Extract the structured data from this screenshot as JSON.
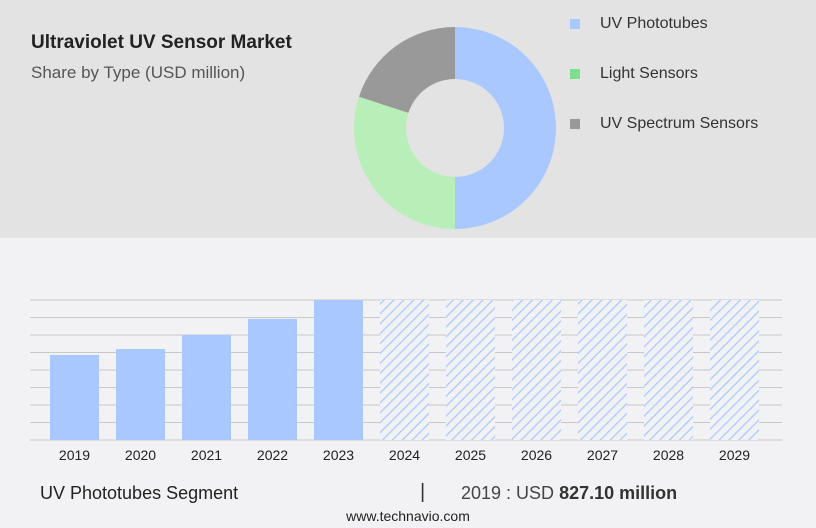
{
  "chart_data": [
    {
      "type": "pie",
      "title": "Ultraviolet UV Sensor Market",
      "subtitle": "Share by Type (USD million)",
      "legend_placement": "right",
      "donut": true,
      "slices": [
        {
          "name": "UV Phototubes",
          "share": 50,
          "color": "#a8c8ff"
        },
        {
          "name": "Light Sensors",
          "share": 30,
          "color": "#b8efb8"
        },
        {
          "name": "UV Spectrum Sensors",
          "share": 20,
          "color": "#999999"
        }
      ],
      "legend_colors": [
        "#a8c8ff",
        "#7ee08e",
        "#999999"
      ]
    },
    {
      "type": "bar",
      "categories": [
        "2019",
        "2020",
        "2021",
        "2022",
        "2023",
        "2024",
        "2025",
        "2026",
        "2027",
        "2028",
        "2029"
      ],
      "values": [
        827.1,
        885,
        1022,
        1178,
        1362,
        null,
        null,
        null,
        null,
        null,
        null
      ],
      "forecast_hatched": [
        "2024",
        "2025",
        "2026",
        "2027",
        "2028",
        "2029"
      ],
      "color": "#a8c8ff",
      "grid": true,
      "ylim": [
        0,
        1362
      ]
    }
  ],
  "footer": {
    "segment": "UV Phototubes Segment",
    "separator": "|",
    "year_prefix": "2019 : USD ",
    "value": "827.10 million",
    "site": "www.technavio.com"
  }
}
